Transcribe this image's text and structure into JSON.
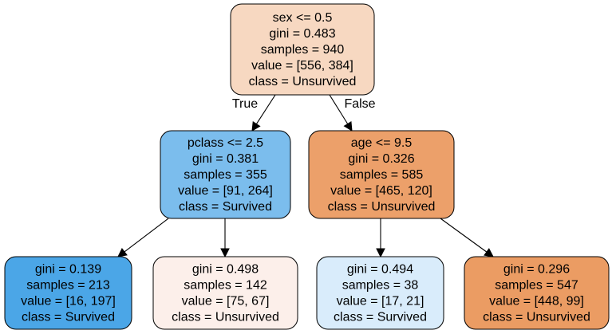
{
  "nodes": [
    {
      "id": "root",
      "fill": "#f7d8c1",
      "lines": [
        "sex <= 0.5",
        "gini = 0.483",
        "samples = 940",
        "value = [556, 384]",
        "class = Unsurvived"
      ]
    },
    {
      "id": "left",
      "fill": "#7bbded",
      "lines": [
        "pclass <= 2.5",
        "gini = 0.381",
        "samples = 355",
        "value = [91, 264]",
        "class = Survived"
      ]
    },
    {
      "id": "right",
      "fill": "#eca06a",
      "lines": [
        "age <= 9.5",
        "gini = 0.326",
        "samples = 585",
        "value = [465, 120]",
        "class = Unsurvived"
      ]
    },
    {
      "id": "ll",
      "fill": "#4ba6e7",
      "lines": [
        "gini = 0.139",
        "samples = 213",
        "value = [16, 197]",
        "class = Survived"
      ]
    },
    {
      "id": "lr",
      "fill": "#fcefea",
      "lines": [
        "gini = 0.498",
        "samples = 142",
        "value = [75, 67]",
        "class = Unsurvived"
      ]
    },
    {
      "id": "rl",
      "fill": "#d9ecfb",
      "lines": [
        "gini = 0.494",
        "samples = 38",
        "value = [17, 21]",
        "class = Survived"
      ]
    },
    {
      "id": "rr",
      "fill": "#eb9c63",
      "lines": [
        "gini = 0.296",
        "samples = 547",
        "value = [448, 99]",
        "class = Unsurvived"
      ]
    }
  ],
  "edges": [
    {
      "from": "root",
      "to": "left",
      "label": "True"
    },
    {
      "from": "root",
      "to": "right",
      "label": "False"
    },
    {
      "from": "left",
      "to": "ll",
      "label": ""
    },
    {
      "from": "left",
      "to": "lr",
      "label": ""
    },
    {
      "from": "right",
      "to": "rl",
      "label": ""
    },
    {
      "from": "right",
      "to": "rr",
      "label": ""
    }
  ]
}
